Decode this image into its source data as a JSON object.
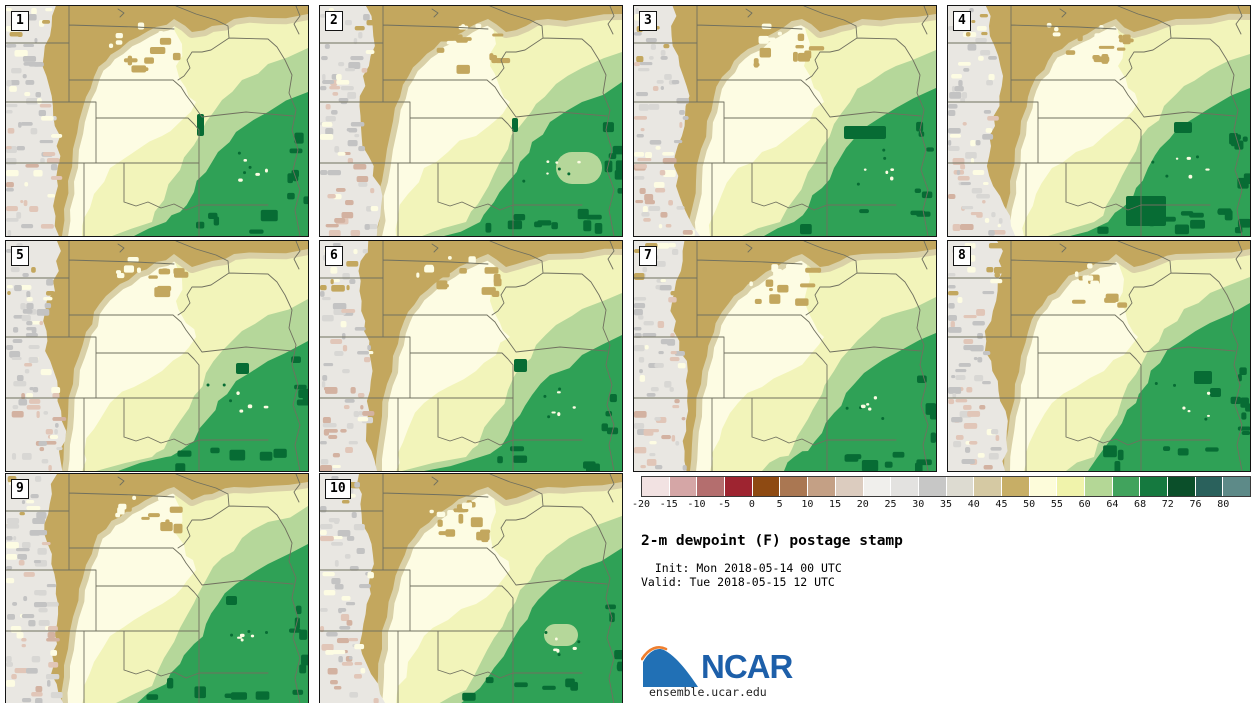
{
  "title": "2-m dewpoint (F) postage stamp",
  "subtitle": {
    "init_line": "  Init: Mon 2018-05-14 00 UTC",
    "valid_line": "Valid: Tue 2018-05-15 12 UTC"
  },
  "branding": {
    "logo_text": "NCAR",
    "site": "ensemble.ucar.edu",
    "logo_blue": "#1d5fa9",
    "swoosh_blue": "#2170b5",
    "swoosh_orange": "#ee7f2f"
  },
  "panels": [
    {
      "label": "1"
    },
    {
      "label": "2"
    },
    {
      "label": "3"
    },
    {
      "label": "4"
    },
    {
      "label": "5"
    },
    {
      "label": "6"
    },
    {
      "label": "7"
    },
    {
      "label": "8"
    },
    {
      "label": "9"
    },
    {
      "label": "10"
    }
  ],
  "colorbar": {
    "units": "F",
    "tick_labels": [
      "-20",
      "-15",
      "-10",
      "-5",
      "0",
      "5",
      "10",
      "15",
      "20",
      "25",
      "30",
      "35",
      "40",
      "45",
      "50",
      "55",
      "60",
      "64",
      "72",
      "76",
      "80"
    ],
    "tick_labels_full": [
      "-20",
      "-15",
      "-10",
      "-5",
      "0",
      "5",
      "10",
      "15",
      "20",
      "25",
      "30",
      "35",
      "40",
      "45",
      "50",
      "55",
      "60",
      "64",
      "68",
      "72",
      "76",
      "80"
    ],
    "colors": [
      "#f2e2e2",
      "#d5a6a6",
      "#b46e6e",
      "#9e2430",
      "#8e4a12",
      "#aa7752",
      "#c4a085",
      "#dcccbf",
      "#f0efec",
      "#e3e2e0",
      "#c7c7c6",
      "#dddbd1",
      "#d5c9a3",
      "#c7ae66",
      "#fdfcda",
      "#f0f3ab",
      "#b4d796",
      "#41a35d",
      "#15793f",
      "#0b4f2a",
      "#2a615c",
      "#5d8a88"
    ]
  },
  "map_palette": {
    "cream": "#fdfce3",
    "yellow": "#f2f4ba",
    "lgreen": "#b5d79a",
    "mgreen": "#2fa156",
    "dgreen": "#076c34",
    "tan": "#c3a75e",
    "tanLight": "#d9d0a7",
    "stripBase": "#e9e7e2",
    "gray1": "#c3c3c3",
    "gray2": "#d8d7d4",
    "pink": "#e1c6b8",
    "pink2": "#d3b2a1",
    "border": "#70705f"
  }
}
